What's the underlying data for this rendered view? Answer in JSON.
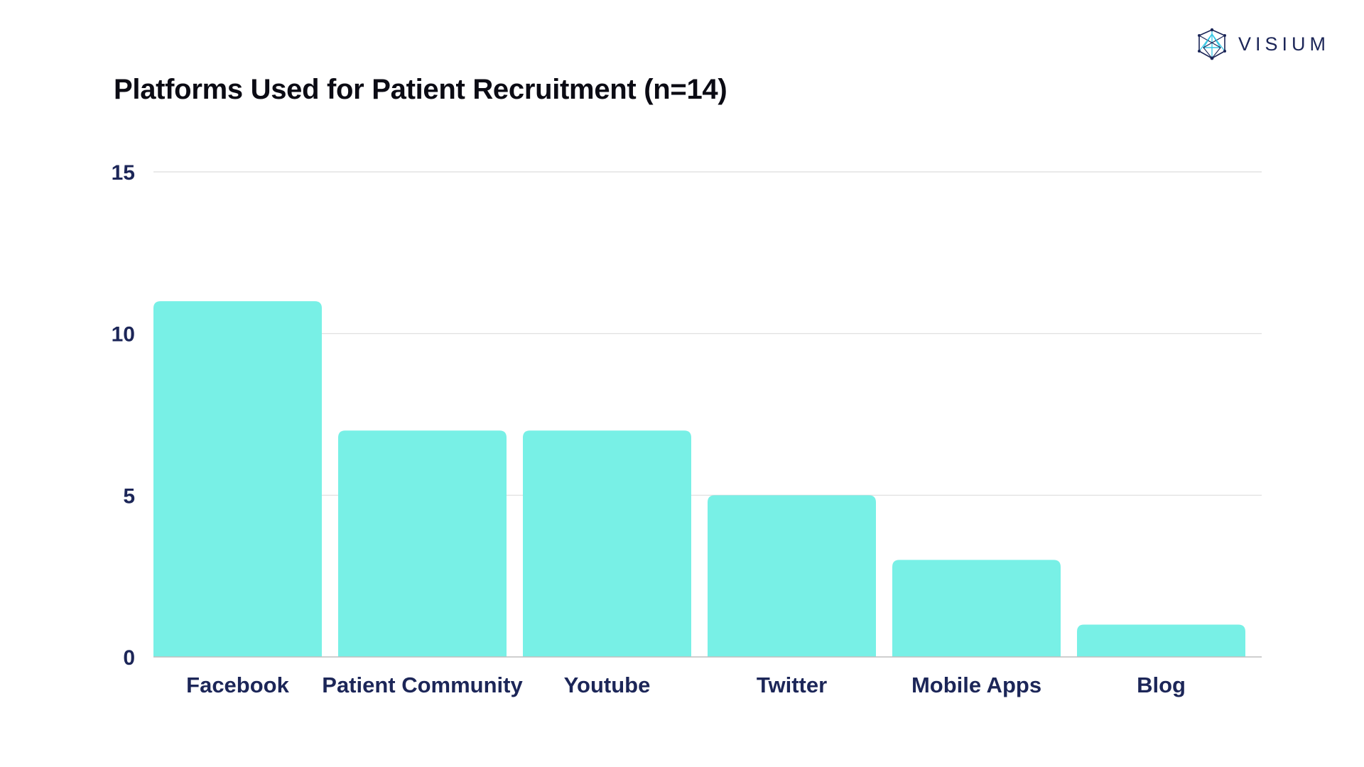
{
  "brand": {
    "name": "VISIUM",
    "logo_icon": "geodesic-sphere-icon",
    "color": "#1c2658",
    "accent": "#35c7e6"
  },
  "chart_data": {
    "type": "bar",
    "title": "Platforms Used for Patient Recruitment (n=14)",
    "categories": [
      "Facebook",
      "Patient Community",
      "Youtube",
      "Twitter",
      "Mobile Apps",
      "Blog"
    ],
    "values": [
      11,
      7,
      7,
      5,
      3,
      1
    ],
    "xlabel": "",
    "ylabel": "",
    "ylim": [
      0,
      15
    ],
    "yticks": [
      "0",
      "5",
      "10",
      "15"
    ],
    "grid": true,
    "legend": "none",
    "bar_color": "#78f0e6",
    "tick_color": "#1c2658",
    "grid_color": "#dddddd"
  }
}
